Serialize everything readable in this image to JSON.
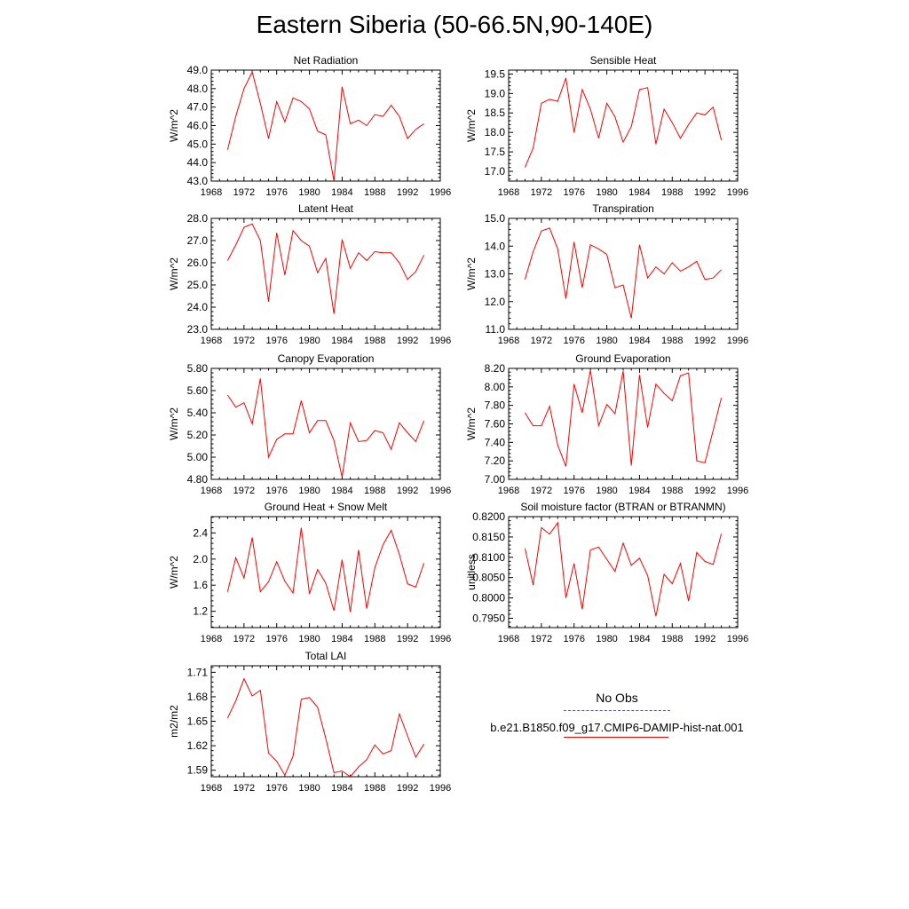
{
  "title": "Eastern Siberia (50-66.5N,90-140E)",
  "line_color": "#ff0000",
  "legend": {
    "obs_label": "No Obs",
    "case_label": "b.e21.B1850.f09_g17.CMIP6-DAMIP-hist-nat.001",
    "obs_color": "#4a4a8c",
    "case_color": "#ff0000"
  },
  "chart_data": [
    {
      "type": "line",
      "title": "Net Radiation",
      "ylabel": "W/m^2",
      "xlim": [
        1968,
        1996
      ],
      "xticks": [
        1968,
        1972,
        1976,
        1980,
        1984,
        1988,
        1992,
        1996
      ],
      "ylim": [
        43.0,
        49.0
      ],
      "yticks": [
        43.0,
        44.0,
        45.0,
        46.0,
        47.0,
        48.0,
        49.0
      ],
      "ydec": 1,
      "x": [
        1970,
        1971,
        1972,
        1973,
        1974,
        1975,
        1976,
        1977,
        1978,
        1979,
        1980,
        1981,
        1982,
        1983,
        1984,
        1985,
        1986,
        1987,
        1988,
        1989,
        1990,
        1991,
        1992,
        1993,
        1994
      ],
      "values": [
        44.7,
        46.5,
        48.0,
        48.9,
        47.2,
        45.3,
        47.3,
        46.2,
        47.5,
        47.3,
        46.9,
        45.7,
        45.5,
        43.0,
        48.1,
        46.1,
        46.3,
        46.0,
        46.6,
        46.5,
        47.1,
        46.5,
        45.3,
        45.8,
        46.1
      ]
    },
    {
      "type": "line",
      "title": "Sensible Heat",
      "ylabel": "W/m^2",
      "xlim": [
        1968,
        1996
      ],
      "xticks": [
        1968,
        1972,
        1976,
        1980,
        1984,
        1988,
        1992,
        1996
      ],
      "ylim": [
        16.75,
        19.6
      ],
      "yticks": [
        17.0,
        17.5,
        18.0,
        18.5,
        19.0,
        19.5
      ],
      "ydec": 1,
      "x": [
        1970,
        1971,
        1972,
        1973,
        1974,
        1975,
        1976,
        1977,
        1978,
        1979,
        1980,
        1981,
        1982,
        1983,
        1984,
        1985,
        1986,
        1987,
        1988,
        1989,
        1990,
        1991,
        1992,
        1993,
        1994
      ],
      "values": [
        17.1,
        17.6,
        18.75,
        18.85,
        18.8,
        19.4,
        18.0,
        19.1,
        18.6,
        17.85,
        18.75,
        18.4,
        17.75,
        18.15,
        19.1,
        19.15,
        17.7,
        18.6,
        18.25,
        17.85,
        18.2,
        18.5,
        18.45,
        18.65,
        17.8
      ]
    },
    {
      "type": "line",
      "title": "Latent Heat",
      "ylabel": "W/m^2",
      "xlim": [
        1968,
        1996
      ],
      "xticks": [
        1968,
        1972,
        1976,
        1980,
        1984,
        1988,
        1992,
        1996
      ],
      "ylim": [
        23.0,
        28.0
      ],
      "yticks": [
        23.0,
        24.0,
        25.0,
        26.0,
        27.0,
        28.0
      ],
      "ydec": 1,
      "x": [
        1970,
        1971,
        1972,
        1973,
        1974,
        1975,
        1976,
        1977,
        1978,
        1979,
        1980,
        1981,
        1982,
        1983,
        1984,
        1985,
        1986,
        1987,
        1988,
        1989,
        1990,
        1991,
        1992,
        1993,
        1994
      ],
      "values": [
        26.1,
        26.8,
        27.6,
        27.75,
        27.0,
        24.25,
        27.35,
        25.45,
        27.45,
        27.0,
        26.75,
        25.55,
        26.2,
        23.7,
        27.05,
        25.75,
        26.45,
        26.1,
        26.5,
        26.45,
        26.45,
        26.0,
        25.25,
        25.6,
        26.35
      ]
    },
    {
      "type": "line",
      "title": "Transpiration",
      "ylabel": "W/m^2",
      "xlim": [
        1968,
        1996
      ],
      "xticks": [
        1968,
        1972,
        1976,
        1980,
        1984,
        1988,
        1992,
        1996
      ],
      "ylim": [
        11.0,
        15.0
      ],
      "yticks": [
        11.0,
        12.0,
        13.0,
        14.0,
        15.0
      ],
      "ydec": 1,
      "x": [
        1970,
        1971,
        1972,
        1973,
        1974,
        1975,
        1976,
        1977,
        1978,
        1979,
        1980,
        1981,
        1982,
        1983,
        1984,
        1985,
        1986,
        1987,
        1988,
        1989,
        1990,
        1991,
        1992,
        1993,
        1994
      ],
      "values": [
        12.8,
        13.8,
        14.55,
        14.65,
        13.9,
        12.1,
        14.15,
        12.5,
        14.05,
        13.9,
        13.7,
        12.5,
        12.6,
        11.4,
        14.05,
        12.85,
        13.25,
        13.0,
        13.4,
        13.1,
        13.25,
        13.45,
        12.8,
        12.85,
        13.15
      ]
    },
    {
      "type": "line",
      "title": "Canopy Evaporation",
      "ylabel": "W/m^2",
      "xlim": [
        1968,
        1996
      ],
      "xticks": [
        1968,
        1972,
        1976,
        1980,
        1984,
        1988,
        1992,
        1996
      ],
      "ylim": [
        4.8,
        5.8
      ],
      "yticks": [
        4.8,
        5.0,
        5.2,
        5.4,
        5.6,
        5.8
      ],
      "ydec": 2,
      "x": [
        1970,
        1971,
        1972,
        1973,
        1974,
        1975,
        1976,
        1977,
        1978,
        1979,
        1980,
        1981,
        1982,
        1983,
        1984,
        1985,
        1986,
        1987,
        1988,
        1989,
        1990,
        1991,
        1992,
        1993,
        1994
      ],
      "values": [
        5.56,
        5.45,
        5.49,
        5.3,
        5.71,
        5.0,
        5.16,
        5.21,
        5.21,
        5.51,
        5.22,
        5.33,
        5.33,
        5.15,
        4.82,
        5.31,
        5.14,
        5.15,
        5.24,
        5.22,
        5.07,
        5.31,
        5.22,
        5.14,
        5.33
      ]
    },
    {
      "type": "line",
      "title": "Ground Evaporation",
      "ylabel": "W/m^2",
      "xlim": [
        1968,
        1996
      ],
      "xticks": [
        1968,
        1972,
        1976,
        1980,
        1984,
        1988,
        1992,
        1996
      ],
      "ylim": [
        7.0,
        8.2
      ],
      "yticks": [
        7.0,
        7.2,
        7.4,
        7.6,
        7.8,
        8.0,
        8.2
      ],
      "ydec": 2,
      "x": [
        1970,
        1971,
        1972,
        1973,
        1974,
        1975,
        1976,
        1977,
        1978,
        1979,
        1980,
        1981,
        1982,
        1983,
        1984,
        1985,
        1986,
        1987,
        1988,
        1989,
        1990,
        1991,
        1992,
        1993,
        1994
      ],
      "values": [
        7.72,
        7.58,
        7.58,
        7.79,
        7.37,
        7.14,
        8.03,
        7.72,
        8.18,
        7.58,
        7.81,
        7.71,
        8.17,
        7.15,
        8.13,
        7.56,
        8.03,
        7.93,
        7.85,
        8.12,
        8.15,
        7.2,
        7.18,
        7.53,
        7.88
      ]
    },
    {
      "type": "line",
      "title": "Ground Heat + Snow Melt",
      "ylabel": "W/m^2",
      "xlim": [
        1968,
        1996
      ],
      "xticks": [
        1968,
        1972,
        1976,
        1980,
        1984,
        1988,
        1992,
        1996
      ],
      "ylim": [
        0.95,
        2.65
      ],
      "yticks": [
        1.2,
        1.6,
        2.0,
        2.4
      ],
      "ydec": 1,
      "x": [
        1970,
        1971,
        1972,
        1973,
        1974,
        1975,
        1976,
        1977,
        1978,
        1979,
        1980,
        1981,
        1982,
        1983,
        1984,
        1985,
        1986,
        1987,
        1988,
        1989,
        1990,
        1991,
        1992,
        1993,
        1994
      ],
      "values": [
        1.5,
        2.02,
        1.71,
        2.33,
        1.5,
        1.65,
        1.96,
        1.66,
        1.48,
        2.48,
        1.47,
        1.84,
        1.63,
        1.21,
        1.99,
        1.19,
        2.14,
        1.24,
        1.87,
        2.22,
        2.44,
        2.07,
        1.62,
        1.57,
        1.94
      ]
    },
    {
      "type": "line",
      "title": "Soil moisture factor (BTRAN or BTRANMN)",
      "ylabel": "unitless",
      "xlim": [
        1968,
        1996
      ],
      "xticks": [
        1968,
        1972,
        1976,
        1980,
        1984,
        1988,
        1992,
        1996
      ],
      "ylim": [
        0.7927,
        0.82
      ],
      "yticks": [
        0.795,
        0.8,
        0.805,
        0.81,
        0.815,
        0.82
      ],
      "ydec": 4,
      "x": [
        1970,
        1971,
        1972,
        1973,
        1974,
        1975,
        1976,
        1977,
        1978,
        1979,
        1980,
        1981,
        1982,
        1983,
        1984,
        1985,
        1986,
        1987,
        1988,
        1989,
        1990,
        1991,
        1992,
        1993,
        1994
      ],
      "values": [
        0.8122,
        0.8032,
        0.8173,
        0.8157,
        0.8185,
        0.8,
        0.8085,
        0.7972,
        0.8118,
        0.8125,
        0.8095,
        0.8065,
        0.8135,
        0.808,
        0.8098,
        0.8055,
        0.7955,
        0.8058,
        0.8035,
        0.8085,
        0.7992,
        0.8112,
        0.809,
        0.8082,
        0.8158
      ]
    },
    {
      "type": "line",
      "title": "Total LAI",
      "ylabel": "m2/m2",
      "xlim": [
        1968,
        1996
      ],
      "xticks": [
        1968,
        1972,
        1976,
        1980,
        1984,
        1988,
        1992,
        1996
      ],
      "ylim": [
        1.582,
        1.718
      ],
      "yticks": [
        1.59,
        1.62,
        1.65,
        1.68,
        1.71
      ],
      "ydec": 2,
      "x": [
        1970,
        1971,
        1972,
        1973,
        1974,
        1975,
        1976,
        1977,
        1978,
        1979,
        1980,
        1981,
        1982,
        1983,
        1984,
        1985,
        1986,
        1987,
        1988,
        1989,
        1990,
        1991,
        1992,
        1993,
        1994
      ],
      "values": [
        1.654,
        1.675,
        1.702,
        1.681,
        1.688,
        1.611,
        1.601,
        1.584,
        1.607,
        1.677,
        1.679,
        1.667,
        1.629,
        1.587,
        1.589,
        1.582,
        1.594,
        1.603,
        1.621,
        1.61,
        1.614,
        1.659,
        1.632,
        1.606,
        1.622
      ]
    }
  ]
}
